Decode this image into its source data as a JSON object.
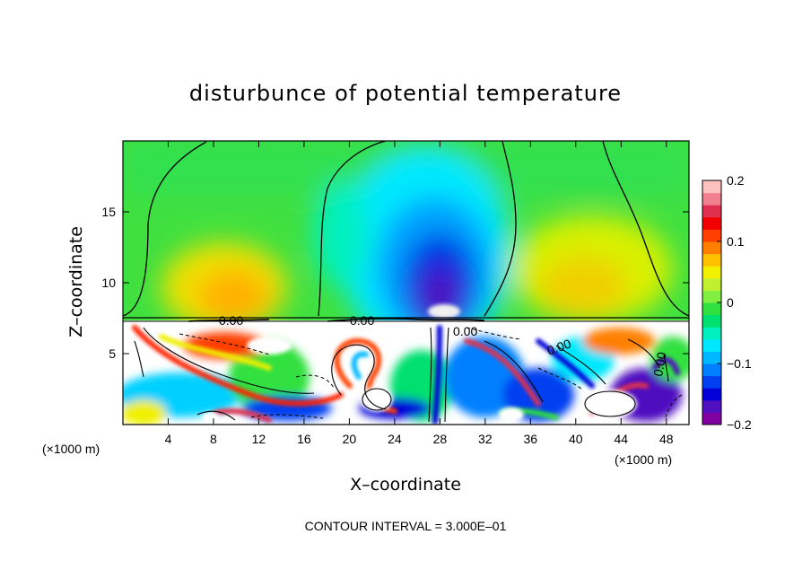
{
  "chart_data": {
    "type": "heatmap",
    "title": "disturbunce of potential temperature",
    "xlabel": "X–coordinate",
    "ylabel": "Z–coordinate",
    "x_unit_left": "(×1000 m)",
    "x_unit_right": "(×1000 m)",
    "footer": "CONTOUR INTERVAL = 3.000E–01",
    "xlim": [
      0,
      50
    ],
    "ylim": [
      0,
      20
    ],
    "x_ticks": [
      4,
      8,
      12,
      16,
      20,
      24,
      28,
      32,
      36,
      40,
      44,
      48
    ],
    "y_ticks": [
      5,
      10,
      15
    ],
    "colorbar": {
      "range": [
        -0.2,
        0.2
      ],
      "ticks": [
        {
          "value": 0.2,
          "label": "0.2"
        },
        {
          "value": 0.1,
          "label": "0.1"
        },
        {
          "value": 0,
          "label": "0"
        },
        {
          "value": -0.1,
          "label": "−0.1"
        },
        {
          "value": -0.2,
          "label": "−0.2"
        }
      ],
      "colors": [
        "#8000a0",
        "#5010c0",
        "#0000d8",
        "#0040f0",
        "#0080ff",
        "#00b8ff",
        "#00e8ff",
        "#00f0c0",
        "#00e070",
        "#30e040",
        "#80f040",
        "#c0f030",
        "#f0f000",
        "#ffc000",
        "#ff8000",
        "#ff4000",
        "#f00000",
        "#e03050",
        "#f08090",
        "#ffc0c0"
      ]
    },
    "contour_labels": [
      "0.00",
      "0.00",
      "0.00",
      "0.00",
      "0.00"
    ]
  }
}
